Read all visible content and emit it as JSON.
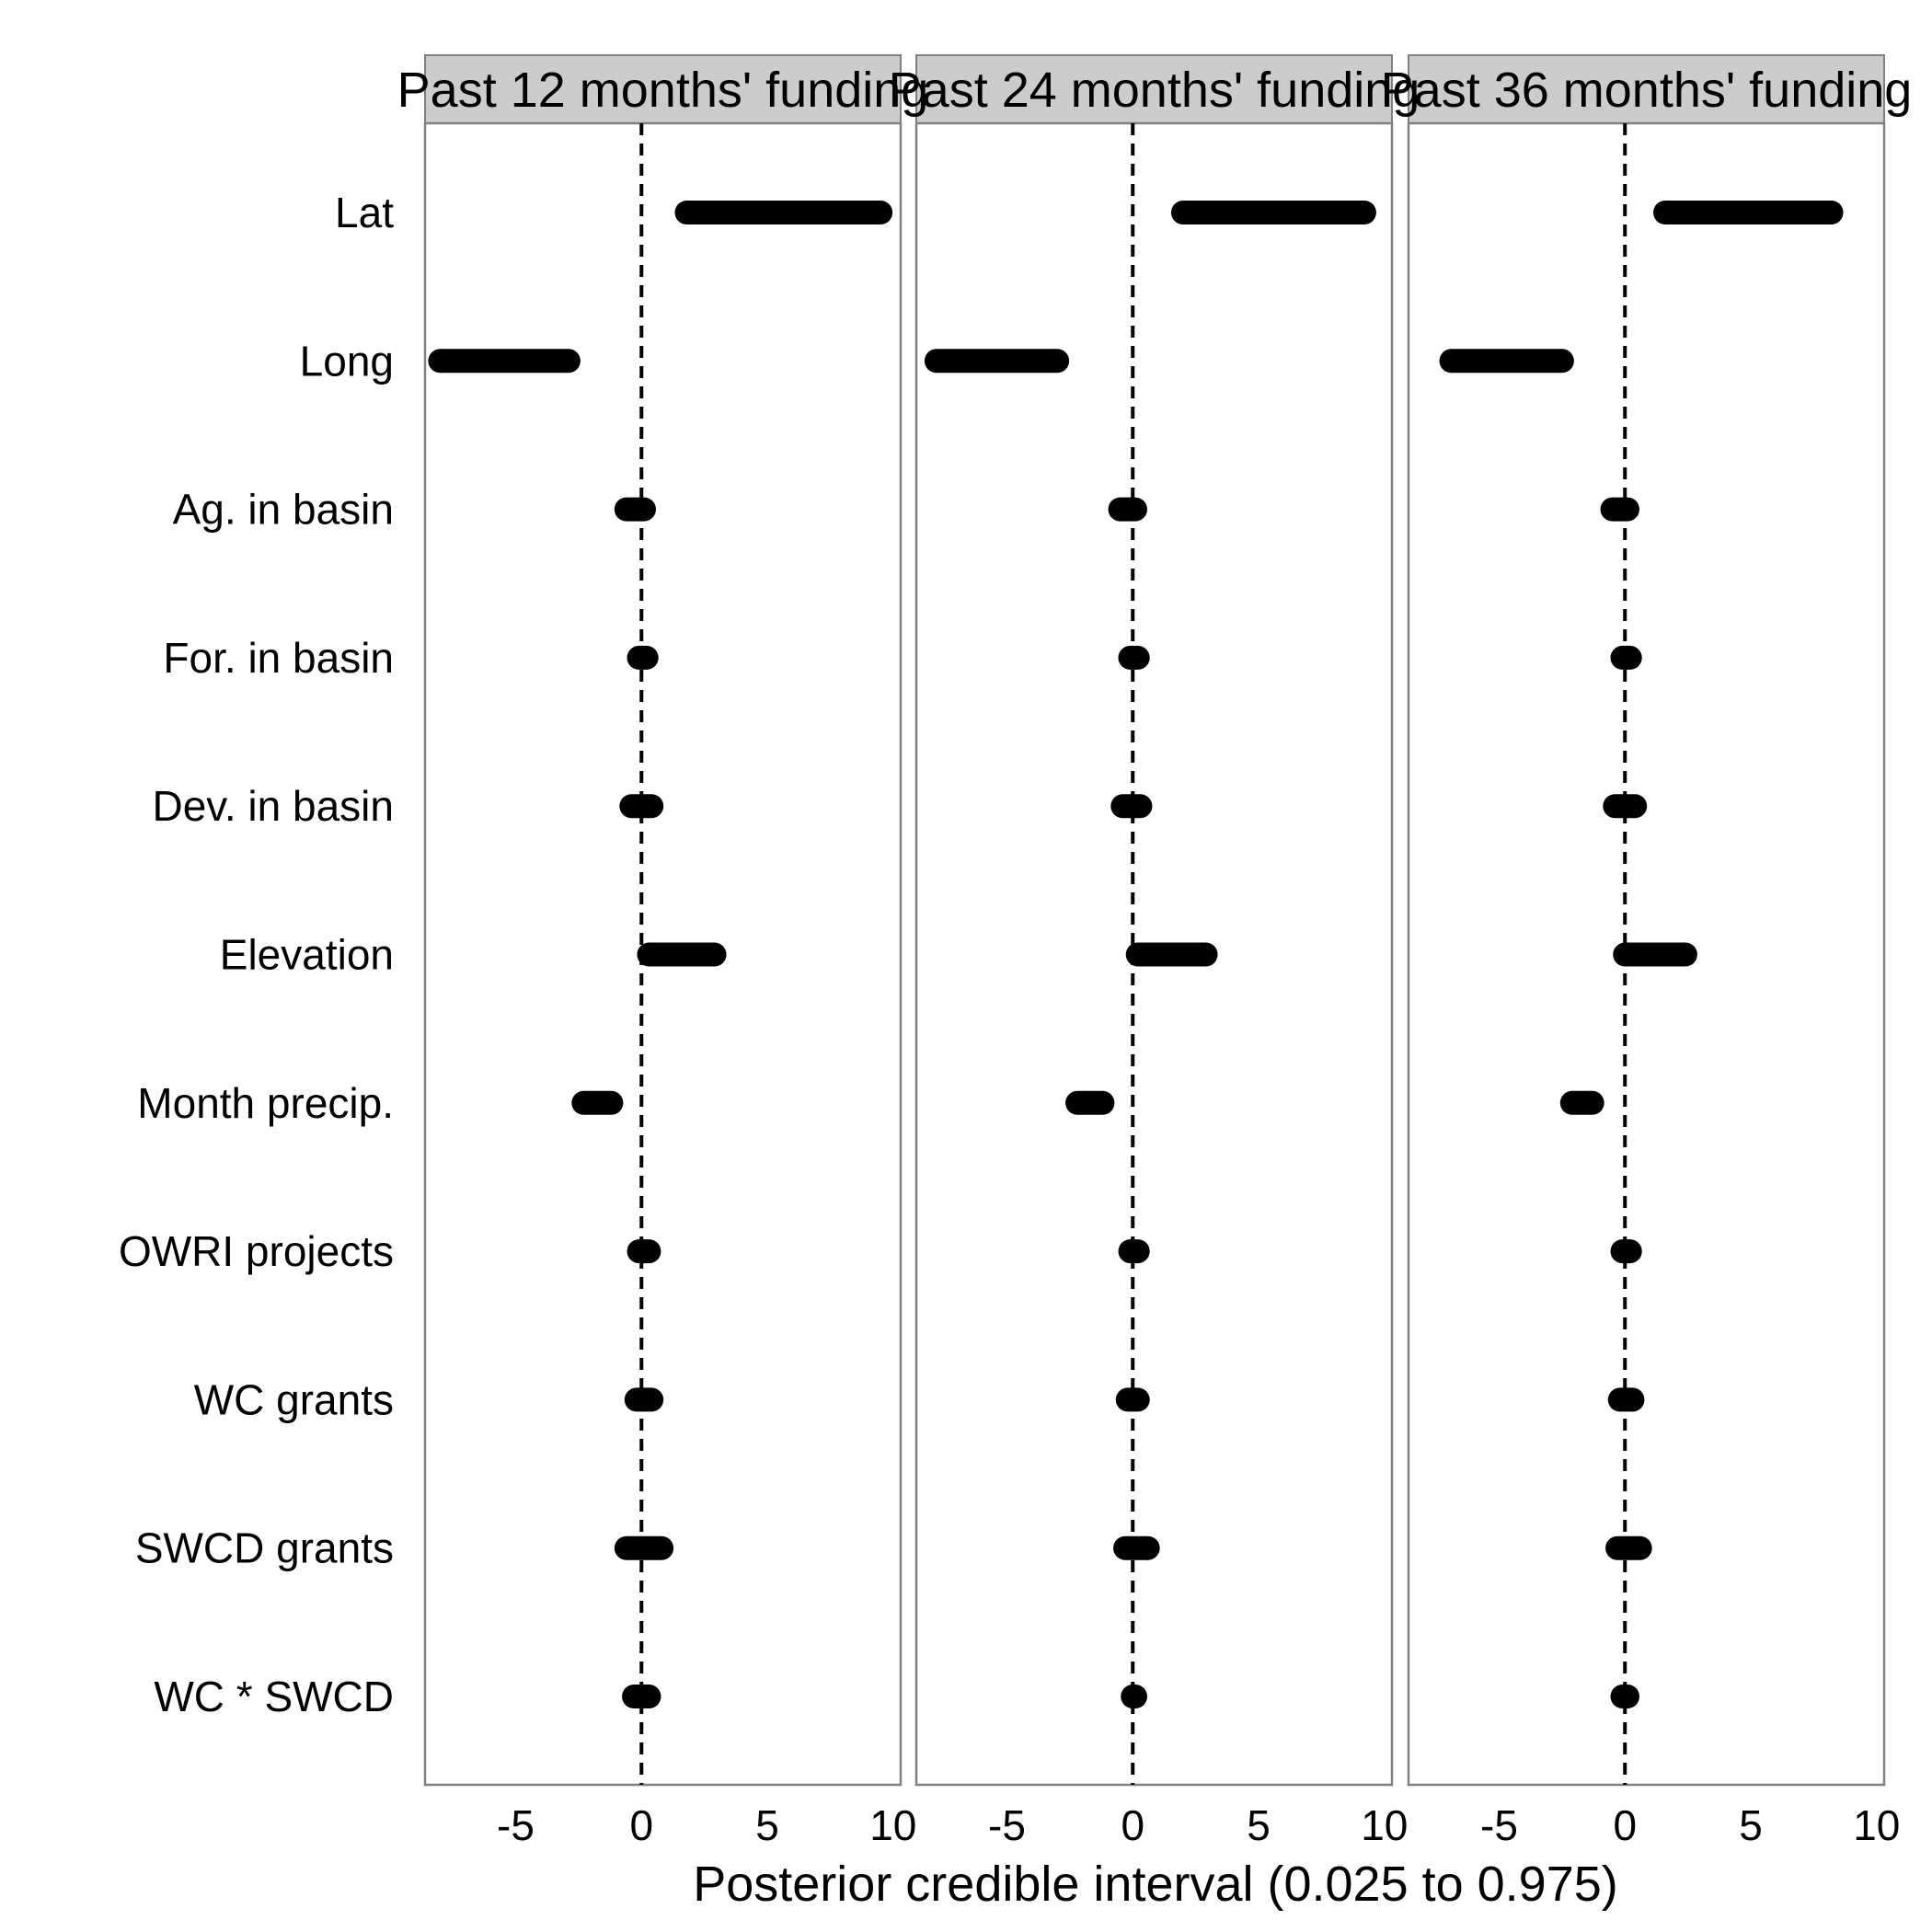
{
  "chart_data": {
    "type": "interval",
    "xlabel": "Posterior credible interval (0.025 to 0.975)",
    "xlim": [
      -8.6,
      10.3
    ],
    "xticks": [
      -5,
      0,
      5,
      10
    ],
    "reference_line": 0,
    "grid": false,
    "variables": [
      "Lat",
      "Long",
      "Ag. in basin",
      "For. in basin",
      "Dev. in basin",
      "Elevation",
      "Month precip.",
      "OWRI projects",
      "WC grants",
      "SWCD grants",
      "WC * SWCD"
    ],
    "panels": [
      {
        "title": "Past 12 months' funding",
        "intervals": [
          {
            "low": 1.8,
            "high": 9.5
          },
          {
            "low": -8.0,
            "high": -2.9
          },
          {
            "low": -0.6,
            "high": 0.1
          },
          {
            "low": -0.1,
            "high": 0.2
          },
          {
            "low": -0.4,
            "high": 0.4
          },
          {
            "low": 0.3,
            "high": 2.9
          },
          {
            "low": -2.3,
            "high": -1.2
          },
          {
            "low": -0.1,
            "high": 0.3
          },
          {
            "low": -0.2,
            "high": 0.4
          },
          {
            "low": -0.6,
            "high": 0.8
          },
          {
            "low": -0.3,
            "high": 0.3
          }
        ]
      },
      {
        "title": "Past 24 months' funding",
        "intervals": [
          {
            "low": 2.0,
            "high": 9.2
          },
          {
            "low": -7.8,
            "high": -3.0
          },
          {
            "low": -0.5,
            "high": 0.1
          },
          {
            "low": -0.1,
            "high": 0.2
          },
          {
            "low": -0.4,
            "high": 0.3
          },
          {
            "low": 0.2,
            "high": 2.9
          },
          {
            "low": -2.2,
            "high": -1.2
          },
          {
            "low": -0.1,
            "high": 0.2
          },
          {
            "low": -0.2,
            "high": 0.2
          },
          {
            "low": -0.3,
            "high": 0.6
          },
          {
            "low": 0.0,
            "high": 0.1
          }
        ]
      },
      {
        "title": "Past 36 months' funding",
        "intervals": [
          {
            "low": 1.6,
            "high": 8.2
          },
          {
            "low": -6.9,
            "high": -2.5
          },
          {
            "low": -0.5,
            "high": 0.1
          },
          {
            "low": -0.1,
            "high": 0.2
          },
          {
            "low": -0.4,
            "high": 0.4
          },
          {
            "low": 0.0,
            "high": 2.4
          },
          {
            "low": -2.1,
            "high": -1.3
          },
          {
            "low": -0.1,
            "high": 0.2
          },
          {
            "low": -0.2,
            "high": 0.3
          },
          {
            "low": -0.3,
            "high": 0.6
          },
          {
            "low": -0.1,
            "high": 0.1
          }
        ]
      }
    ]
  },
  "colors": {
    "strip_fill": "#cccccc",
    "panel_border": "#808080",
    "interval": "#000000",
    "reference_line": "#000000"
  }
}
